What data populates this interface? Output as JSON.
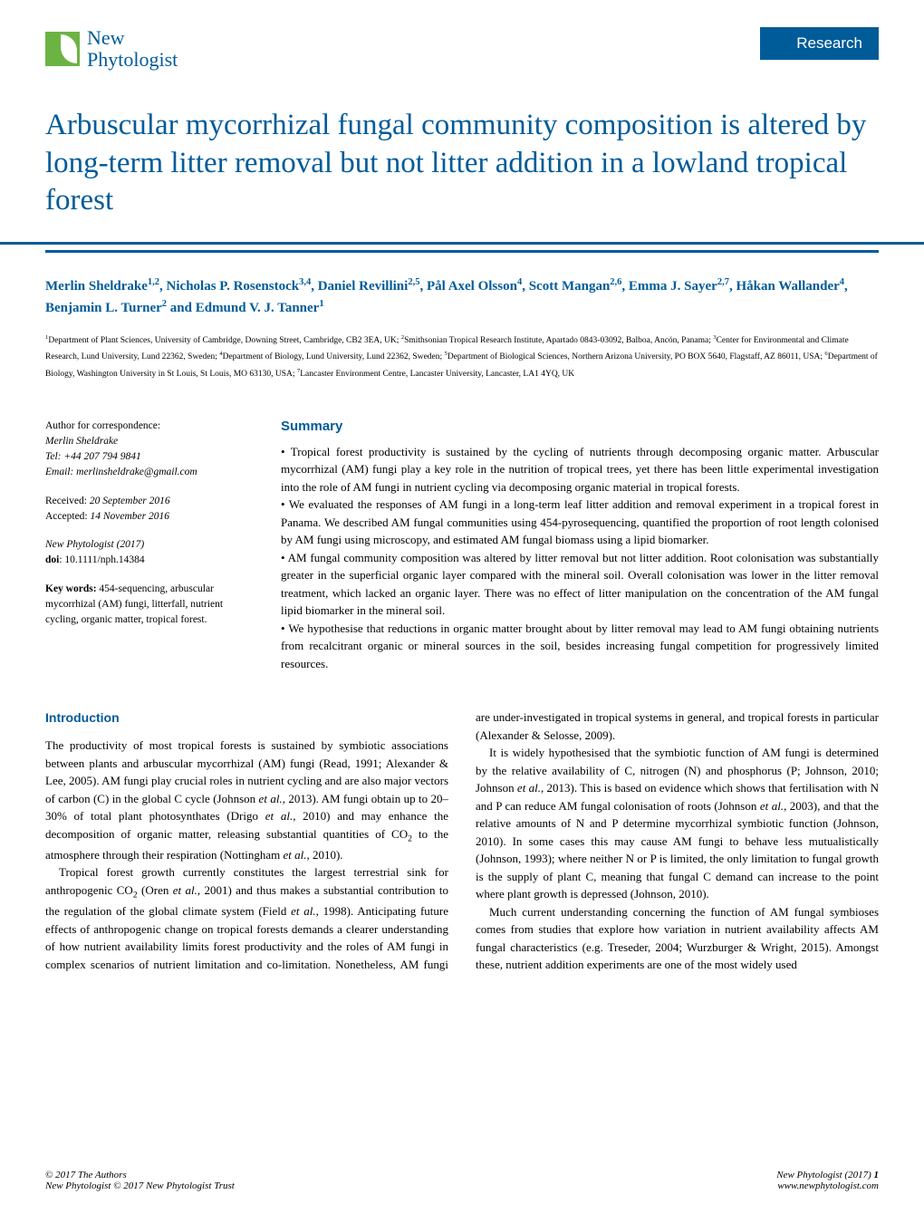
{
  "colors": {
    "brand_blue": "#005b99",
    "brand_green": "#6bb443",
    "background": "#ffffff",
    "text": "#000000"
  },
  "typography": {
    "title_fontsize": 33,
    "body_fontsize": 13,
    "author_fontsize": 15,
    "affiliation_fontsize": 9.5,
    "meta_fontsize": 11.5,
    "heading_fontsize": 14
  },
  "header": {
    "journal_line1": "New",
    "journal_line2": "Phytologist",
    "badge": "Research"
  },
  "title": "Arbuscular mycorrhizal fungal community composition is altered by long-term litter removal but not litter addition in a lowland tropical forest",
  "authors_html": "Merlin Sheldrake<sup>1,2</sup>, Nicholas P. Rosenstock<sup>3,4</sup>, Daniel Revillini<sup>2,5</sup>, Pål Axel Olsson<sup>4</sup>, Scott Mangan<sup>2,6</sup>, Emma J. Sayer<sup>2,7</sup>, Håkan Wallander<sup>4</sup>, Benjamin L. Turner<sup>2</sup> and Edmund V. J. Tanner<sup>1</sup>",
  "affiliations_html": "<sup>1</sup>Department of Plant Sciences, University of Cambridge, Downing Street, Cambridge, CB2 3EA, UK; <sup>2</sup>Smithsonian Tropical Research Institute, Apartado 0843-03092, Balboa, Ancón, Panama; <sup>3</sup>Center for Environmental and Climate Research, Lund University, Lund 22362, Sweden; <sup>4</sup>Department of Biology, Lund University, Lund 22362, Sweden; <sup>5</sup>Department of Biological Sciences, Northern Arizona University, PO BOX 5640, Flagstaff, AZ 86011, USA; <sup>6</sup>Department of Biology, Washington University in St Louis, St Louis, MO 63130, USA; <sup>7</sup>Lancaster Environment Centre, Lancaster University, Lancaster, LA1 4YQ, UK",
  "meta": {
    "correspondence_label": "Author for correspondence:",
    "correspondence_name": "Merlin Sheldrake",
    "tel": "Tel: +44 207 794 9841",
    "email": "Email: merlinsheldrake@gmail.com",
    "received": "Received: 20 September 2016",
    "accepted": "Accepted: 14 November 2016",
    "journal_year": "New Phytologist (2017)",
    "doi_label": "doi",
    "doi_value": ": 10.1111/nph.14384",
    "keywords_label": "Key words:",
    "keywords": " 454-sequencing, arbuscular mycorrhizal (AM) fungi, litterfall, nutrient cycling, organic matter, tropical forest."
  },
  "summary": {
    "heading": "Summary",
    "bullets": [
      "Tropical forest productivity is sustained by the cycling of nutrients through decomposing organic matter. Arbuscular mycorrhizal (AM) fungi play a key role in the nutrition of tropical trees, yet there has been little experimental investigation into the role of AM fungi in nutrient cycling via decomposing organic material in tropical forests.",
      "We evaluated the responses of AM fungi in a long-term leaf litter addition and removal experiment in a tropical forest in Panama. We described AM fungal communities using 454-pyrosequencing, quantified the proportion of root length colonised by AM fungi using microscopy, and estimated AM fungal biomass using a lipid biomarker.",
      "AM fungal community composition was altered by litter removal but not litter addition. Root colonisation was substantially greater in the superficial organic layer compared with the mineral soil. Overall colonisation was lower in the litter removal treatment, which lacked an organic layer. There was no effect of litter manipulation on the concentration of the AM fungal lipid biomarker in the mineral soil.",
      "We hypothesise that reductions in organic matter brought about by litter removal may lead to AM fungi obtaining nutrients from recalcitrant organic or mineral sources in the soil, besides increasing fungal competition for progressively limited resources."
    ]
  },
  "intro": {
    "heading": "Introduction",
    "para1_html": "The productivity of most tropical forests is sustained by symbiotic associations between plants and arbuscular mycorrhizal (AM) fungi (Read, 1991; Alexander & Lee, 2005). AM fungi play crucial roles in nutrient cycling and are also major vectors of carbon (C) in the global C cycle (Johnson <span class='italic'>et al.</span>, 2013). AM fungi obtain up to 20–30% of total plant photosynthates (Drigo <span class='italic'>et al.</span>, 2010) and may enhance the decomposition of organic matter, releasing substantial quantities of CO<sub>2</sub> to the atmosphere through their respiration (Nottingham <span class='italic'>et al.</span>, 2010).",
    "para2_html": "Tropical forest growth currently constitutes the largest terrestrial sink for anthropogenic CO<sub>2</sub> (Oren <span class='italic'>et al.</span>, 2001) and thus makes a substantial contribution to the regulation of the global climate system (Field <span class='italic'>et al.</span>, 1998). Anticipating future effects of anthropogenic change on tropical forests demands a clearer understanding of how nutrient availability limits forest productivity and the roles of AM fungi in complex scenarios of nutrient limitation and co-limitation. Nonetheless, AM fungi are under-investigated in tropical systems in general, and tropical forests in particular (Alexander & Selosse, 2009).",
    "para3_html": "It is widely hypothesised that the symbiotic function of AM fungi is determined by the relative availability of C, nitrogen (N) and phosphorus (P; Johnson, 2010; Johnson <span class='italic'>et al.</span>, 2013). This is based on evidence which shows that fertilisation with N and P can reduce AM fungal colonisation of roots (Johnson <span class='italic'>et al.</span>, 2003), and that the relative amounts of N and P determine mycorrhizal symbiotic function (Johnson, 2010). In some cases this may cause AM fungi to behave less mutualistically (Johnson, 1993); where neither N or P is limited, the only limitation to fungal growth is the supply of plant C, meaning that fungal C demand can increase to the point where plant growth is depressed (Johnson, 2010).",
    "para4_html": "Much current understanding concerning the function of AM fungal symbioses comes from studies that explore how variation in nutrient availability affects AM fungal characteristics (e.g. Treseder, 2004; Wurzburger & Wright, 2015). Amongst these, nutrient addition experiments are one of the most widely used"
  },
  "footer": {
    "left_line1": "© 2017 The Authors",
    "left_line2_html": "<span class='italic'>New Phytologist</span> © 2017 New Phytologist Trust",
    "right_line1_html": "<span class='italic'>New Phytologist</span> (2017) <span class='bold'>1</span>",
    "right_line2": "www.newphytologist.com"
  }
}
